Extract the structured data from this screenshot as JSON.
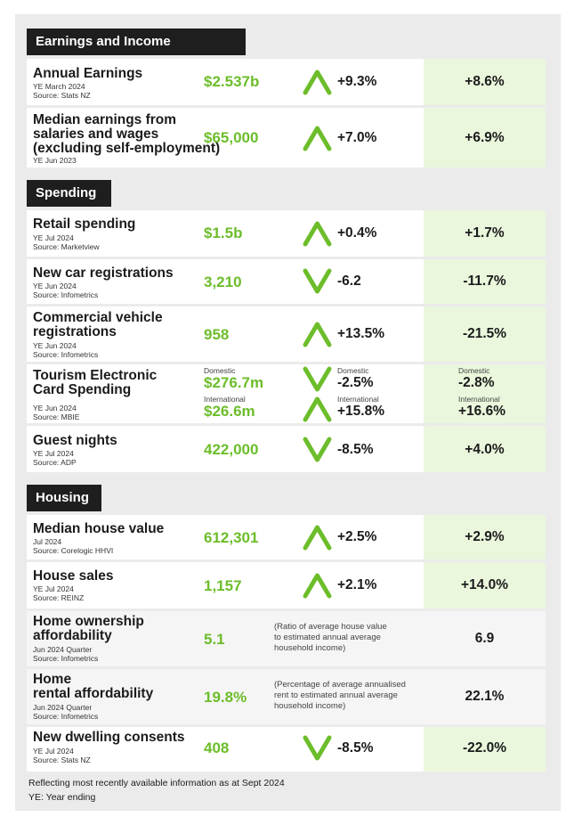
{
  "sections": {
    "earnings": "Earnings and Income",
    "spending": "Spending",
    "housing": "Housing"
  },
  "rows": {
    "annual": {
      "title": "Annual Earnings",
      "sub1": "YE March 2024",
      "sub2": "Source: Stats NZ",
      "value": "$2.537b",
      "change": "+9.3%",
      "compare": "+8.6%",
      "arrow": "up-arrow-icon"
    },
    "median": {
      "title1": "Median earnings from",
      "title2": "salaries and wages",
      "title3": "(excluding self-employment)",
      "sub1": "YE Jun 2023",
      "value": "$65,000",
      "change": "+7.0%",
      "compare": "+6.9%",
      "arrow": "up-arrow-icon"
    },
    "retail": {
      "title": "Retail spending",
      "sub1": "YE Jul 2024",
      "sub2": "Source: Marketview",
      "value": "$1.5b",
      "change": "+0.4%",
      "compare": "+1.7%",
      "arrow": "up-arrow-icon"
    },
    "newcar": {
      "title": "New car registrations",
      "sub1": "YE Jun 2024",
      "sub2": "Source: Infometrics",
      "value": "3,210",
      "change": "-6.2",
      "compare": "-11.7%",
      "arrow": "down-arrow-icon"
    },
    "commercial": {
      "title1": "Commercial vehicle",
      "title2": "registrations",
      "sub1": "YE Jun 2024",
      "sub2": "Source: Infometrics",
      "value": "958",
      "change": "+13.5%",
      "compare": "-21.5%",
      "arrow": "up-arrow-icon"
    },
    "tourism": {
      "title1": "Tourism Electronic",
      "title2": "Card Spending",
      "sub1": "YE Jun 2024",
      "sub2": "Source: MBIE",
      "dom_label": "Domestic",
      "int_label": "International",
      "dom_value": "$276.7m",
      "int_value": "$26.6m",
      "dom_change": "-2.5%",
      "int_change": "+15.8%",
      "dom_compare": "-2.8%",
      "int_compare": "+16.6%",
      "dom_arrow": "down-arrow-icon",
      "int_arrow": "up-arrow-icon"
    },
    "guest": {
      "title": "Guest nights",
      "sub1": "YE Jul 2024",
      "sub2": "Source: ADP",
      "value": "422,000",
      "change": "-8.5%",
      "compare": "+4.0%",
      "arrow": "down-arrow-icon"
    },
    "house": {
      "title": "Median house value",
      "sub1": "Jul 2024",
      "sub2": "Source: Corelogic HHVI",
      "value": "612,301",
      "change": "+2.5%",
      "compare": "+2.9%",
      "arrow": "up-arrow-icon"
    },
    "sales": {
      "title": "House sales",
      "sub1": "YE Jul 2024",
      "sub2": "Source: REINZ",
      "value": "1,157",
      "change": "+2.1%",
      "compare": "+14.0%",
      "arrow": "up-arrow-icon"
    },
    "ownership": {
      "title1": "Home ownership",
      "title2": "affordability",
      "sub1": "Jun 2024 Quarter",
      "sub2": "Source: Infometrics",
      "value": "5.1",
      "note1": "(Ratio of average house value",
      "note2": "to estimated annual average",
      "note3": "household income)",
      "compare": "6.9"
    },
    "rental": {
      "title1": "Home",
      "title2": "rental affordability",
      "sub1": "Jun 2024 Quarter",
      "sub2": "Source: Infometrics",
      "value": "19.8%",
      "note1": "(Percentage of average annualised",
      "note2": "rent to estimated annual average",
      "note3": "household income)",
      "compare": "22.1%"
    },
    "dwelling": {
      "title": "New dwelling consents",
      "sub1": "YE Jul 2024",
      "sub2": "Source: Stats NZ",
      "value": "408",
      "change": "-8.5%",
      "compare": "-22.0%",
      "arrow": "down-arrow-icon"
    }
  },
  "footer": {
    "line1": "Reflecting most recently available information as at Sept 2024",
    "line2": "YE: Year ending"
  },
  "colors": {
    "accent": "#6cbd2a",
    "tint": "#eaf7dc",
    "header": "#1e1e1e",
    "panel": "#ebebeb"
  }
}
